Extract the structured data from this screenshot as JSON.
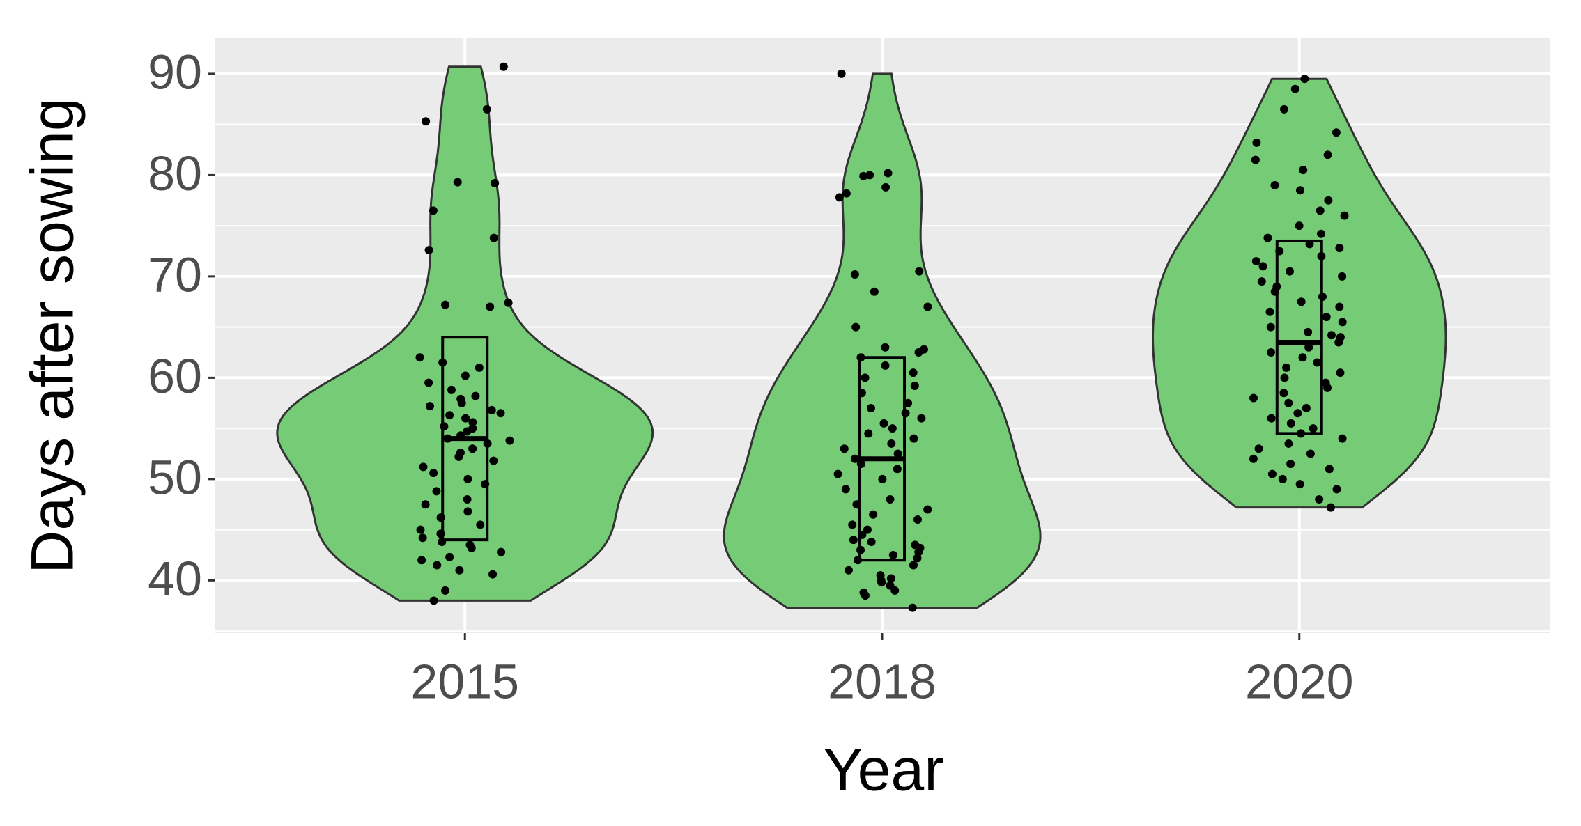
{
  "chart_data": {
    "type": "violin",
    "x_label": "Year",
    "y_label": "Days after sowing",
    "categories": [
      "2015",
      "2018",
      "2020"
    ],
    "color": "#76cc76",
    "grid": true,
    "ylim": [
      34.8,
      93.5
    ],
    "yticks": [
      40,
      50,
      60,
      70,
      80,
      90
    ],
    "groups": [
      {
        "q1": 44,
        "median": 54,
        "q3": 64,
        "values": [
          90.7,
          86.5,
          85.3,
          79.3,
          79.2,
          76.5,
          73.8,
          72.6,
          67.4,
          67.2,
          67.0,
          62,
          61.5,
          61,
          60.2,
          59.5,
          58.8,
          58.2,
          57.9,
          57.5,
          57.2,
          56.8,
          56.5,
          56.3,
          56,
          55.6,
          55.2,
          55,
          54.7,
          54.3,
          54,
          53.8,
          53.5,
          53,
          52.6,
          52.2,
          51.8,
          51.2,
          50.6,
          50,
          49.5,
          48.8,
          48,
          47.5,
          46.8,
          46.2,
          45.5,
          45,
          44.6,
          44.2,
          43.8,
          43.5,
          43.2,
          42.8,
          42.3,
          42,
          41.5,
          41,
          40.6,
          39,
          38
        ]
      },
      {
        "q1": 42,
        "median": 52,
        "q3": 62,
        "values": [
          90,
          80.2,
          80,
          79.9,
          78.8,
          78.2,
          77.8,
          70.5,
          70.2,
          68.5,
          67,
          65,
          63,
          62.8,
          62.5,
          62,
          61.2,
          60.5,
          60,
          59.2,
          58.5,
          57.5,
          57,
          56.5,
          56,
          55.5,
          55,
          54.5,
          54,
          53.5,
          53,
          52.5,
          52,
          51.5,
          51,
          50.5,
          50,
          49,
          48,
          47.5,
          47,
          46.5,
          46,
          45.5,
          45,
          44.5,
          44,
          43.8,
          43.5,
          43.2,
          43,
          42.8,
          42.5,
          42.2,
          42,
          41.5,
          41,
          40.5,
          40.2,
          40,
          39.8,
          39.5,
          39,
          38.8,
          38.5,
          37.3
        ]
      },
      {
        "q1": 54.5,
        "median": 63.5,
        "q3": 73.5,
        "values": [
          89.5,
          88.5,
          86.5,
          84.2,
          83.2,
          82,
          81.5,
          80.5,
          79,
          78.5,
          77.5,
          76.5,
          76,
          75,
          74.2,
          73.8,
          73.2,
          72.8,
          72.5,
          72,
          71.5,
          71,
          70.5,
          70,
          69.5,
          69,
          68.5,
          68,
          67.5,
          67,
          66.5,
          66,
          65.5,
          65,
          64.5,
          64.2,
          64,
          63.5,
          63,
          62.5,
          62,
          61.5,
          61,
          60.5,
          60,
          59.5,
          59,
          58.5,
          58,
          57.5,
          57,
          56.5,
          56,
          55.5,
          55,
          54.5,
          54,
          53.5,
          53,
          52.5,
          52,
          51.5,
          51,
          50.5,
          50,
          49.5,
          49,
          48,
          47.2
        ]
      }
    ]
  }
}
